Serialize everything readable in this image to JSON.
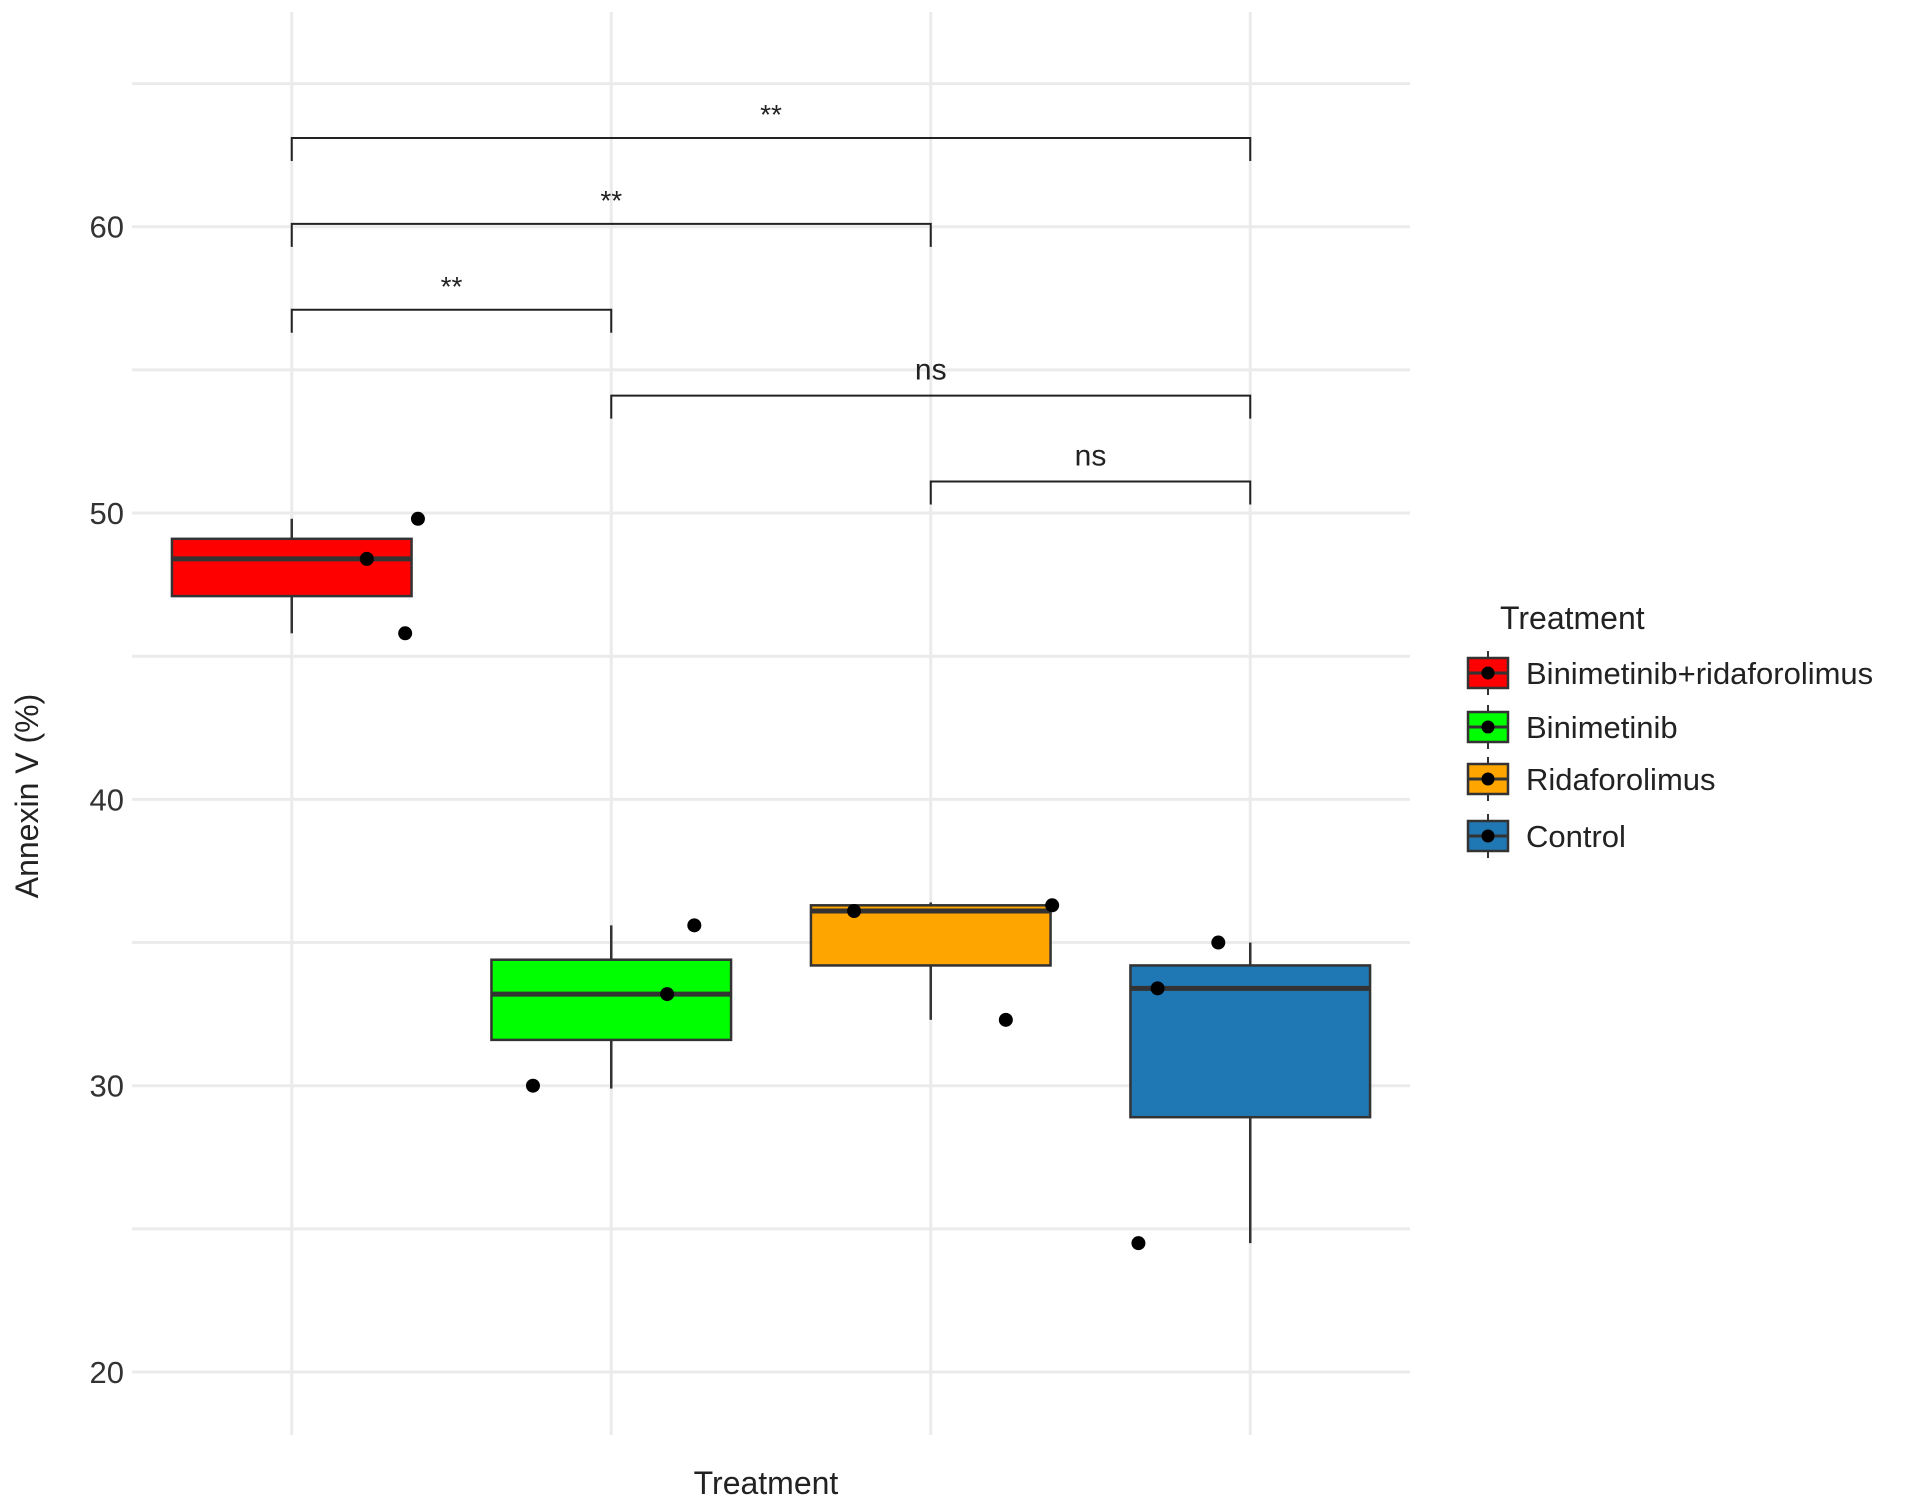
{
  "chart_data": {
    "type": "box",
    "xlabel": "Treatment",
    "ylabel": "Annexin V (%)",
    "ylim": [
      17.8,
      67.5
    ],
    "y_ticks": [
      20,
      30,
      40,
      50,
      60
    ],
    "grid": true,
    "legend": {
      "title": "Treatment",
      "position": "right"
    },
    "groups": [
      {
        "name": "Binimetinib+ridaforolimus",
        "color": "#FF0000",
        "box": {
          "whisker_low": 45.8,
          "q1": 47.1,
          "median": 48.4,
          "q3": 49.1,
          "whisker_high": 49.8
        },
        "points": [
          {
            "offset": 0.235,
            "y": 48.4
          },
          {
            "offset": 0.395,
            "y": 49.8
          },
          {
            "offset": 0.355,
            "y": 45.8
          }
        ]
      },
      {
        "name": "Binimetinib",
        "color": "#00FF00",
        "box": {
          "whisker_low": 29.9,
          "q1": 31.6,
          "median": 33.2,
          "q3": 34.4,
          "whisker_high": 35.6
        },
        "points": [
          {
            "offset": -0.245,
            "y": 30.0
          },
          {
            "offset": 0.175,
            "y": 33.2
          },
          {
            "offset": 0.26,
            "y": 35.6
          }
        ]
      },
      {
        "name": "Ridaforolimus",
        "color": "#FFA500",
        "box": {
          "whisker_low": 32.3,
          "q1": 34.2,
          "median": 36.1,
          "q3": 36.3,
          "whisker_high": 36.4
        },
        "points": [
          {
            "offset": -0.24,
            "y": 36.1
          },
          {
            "offset": 0.38,
            "y": 36.3
          },
          {
            "offset": 0.235,
            "y": 32.3
          }
        ]
      },
      {
        "name": "Control",
        "color": "#1F78B4",
        "box": {
          "whisker_low": 24.5,
          "q1": 28.9,
          "median": 33.4,
          "q3": 34.2,
          "whisker_high": 35.0
        },
        "points": [
          {
            "offset": -0.35,
            "y": 24.5
          },
          {
            "offset": -0.29,
            "y": 33.4
          },
          {
            "offset": -0.1,
            "y": 35.0
          }
        ]
      }
    ],
    "annotations": [
      {
        "from": 0,
        "to": 3,
        "y": 63.1,
        "label": "**"
      },
      {
        "from": 0,
        "to": 2,
        "y": 60.1,
        "label": "**"
      },
      {
        "from": 0,
        "to": 1,
        "y": 57.1,
        "label": "**"
      },
      {
        "from": 1,
        "to": 3,
        "y": 54.1,
        "label": "ns"
      },
      {
        "from": 2,
        "to": 3,
        "y": 51.1,
        "label": "ns"
      }
    ]
  }
}
